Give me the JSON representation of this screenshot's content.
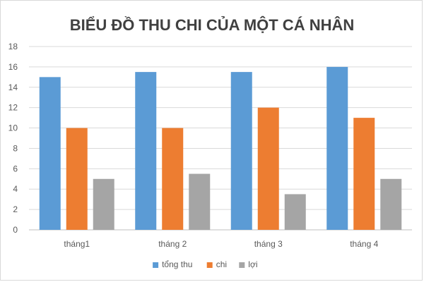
{
  "chart_data": {
    "type": "bar",
    "title": "BIỂU ĐỒ THU CHI CỦA MỘT CÁ NHÂN",
    "categories": [
      "tháng1",
      "tháng 2",
      "tháng 3",
      "tháng 4"
    ],
    "series": [
      {
        "name": "tổng thu",
        "values": [
          15,
          15.5,
          15.5,
          16
        ],
        "color": "#5b9bd5"
      },
      {
        "name": "chi",
        "values": [
          10,
          10,
          12,
          11
        ],
        "color": "#ed7d31"
      },
      {
        "name": "lợi",
        "values": [
          5,
          5.5,
          3.5,
          5
        ],
        "color": "#a5a5a5"
      }
    ],
    "ylim": [
      0,
      18
    ],
    "yticks": [
      0,
      2,
      4,
      6,
      8,
      10,
      12,
      14,
      16,
      18
    ],
    "grid": true,
    "legend": "bottom"
  }
}
